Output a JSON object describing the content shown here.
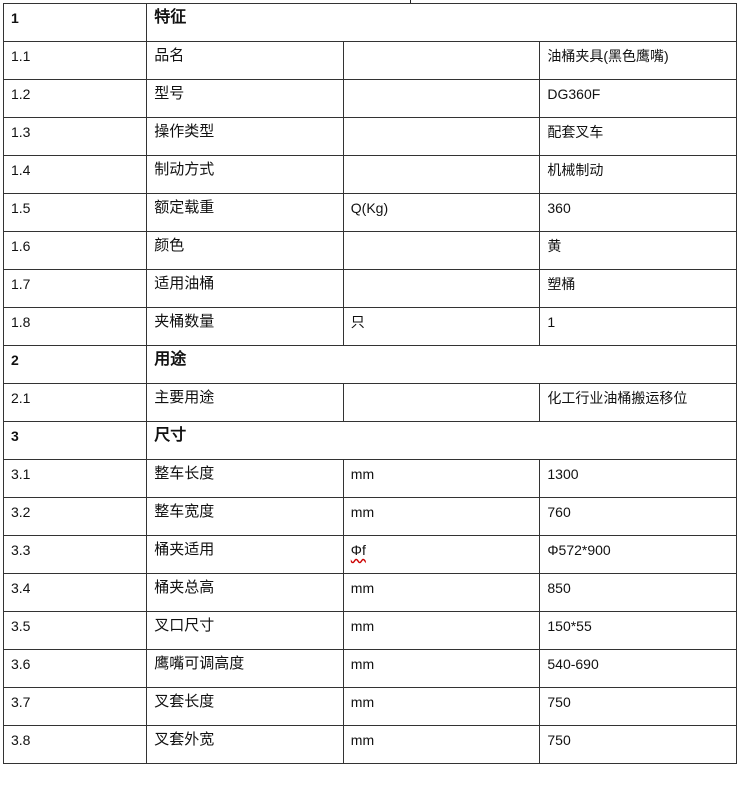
{
  "rows": [
    {
      "no": "1",
      "name": "特征",
      "section": true
    },
    {
      "no": "1.1",
      "name": "品名",
      "unit": "",
      "value": "油桶夹具(黑色鹰嘴)"
    },
    {
      "no": "1.2",
      "name": "型号",
      "unit": "",
      "value": "DG360F"
    },
    {
      "no": "1.3",
      "name": "操作类型",
      "unit": "",
      "value": "配套叉车"
    },
    {
      "no": "1.4",
      "name": "制动方式",
      "unit": "",
      "value": "机械制动"
    },
    {
      "no": "1.5",
      "name": "额定载重",
      "unit": "Q(Kg)",
      "value": "360"
    },
    {
      "no": "1.6",
      "name": "颜色",
      "unit": "",
      "value": "黄"
    },
    {
      "no": "1.7",
      "name": "适用油桶",
      "unit": "",
      "value": "塑桶"
    },
    {
      "no": "1.8",
      "name": "夹桶数量",
      "unit": "只",
      "value": "1"
    },
    {
      "no": "2",
      "name": "用途",
      "section": true
    },
    {
      "no": "2.1",
      "name": "主要用途",
      "unit": "",
      "value": "化工行业油桶搬运移位"
    },
    {
      "no": "3",
      "name": "尺寸",
      "section": true
    },
    {
      "no": "3.1",
      "name": "整车长度",
      "unit": "mm",
      "value": "1300"
    },
    {
      "no": "3.2",
      "name": "整车宽度",
      "unit": "mm",
      "value": "760"
    },
    {
      "no": "3.3",
      "name": "桶夹适用",
      "unit": "Φf",
      "value": "Φ572*900"
    },
    {
      "no": "3.4",
      "name": "桶夹总高",
      "unit": "mm",
      "value": "850"
    },
    {
      "no": "3.5",
      "name": "叉口尺寸",
      "unit": "mm",
      "value": "150*55"
    },
    {
      "no": "3.6",
      "name": "鹰嘴可调高度",
      "unit": "mm",
      "value": "540-690"
    },
    {
      "no": "3.7",
      "name": "叉套长度",
      "unit": "mm",
      "value": "750"
    },
    {
      "no": "3.8",
      "name": "叉套外宽",
      "unit": "mm",
      "value": "750"
    }
  ]
}
